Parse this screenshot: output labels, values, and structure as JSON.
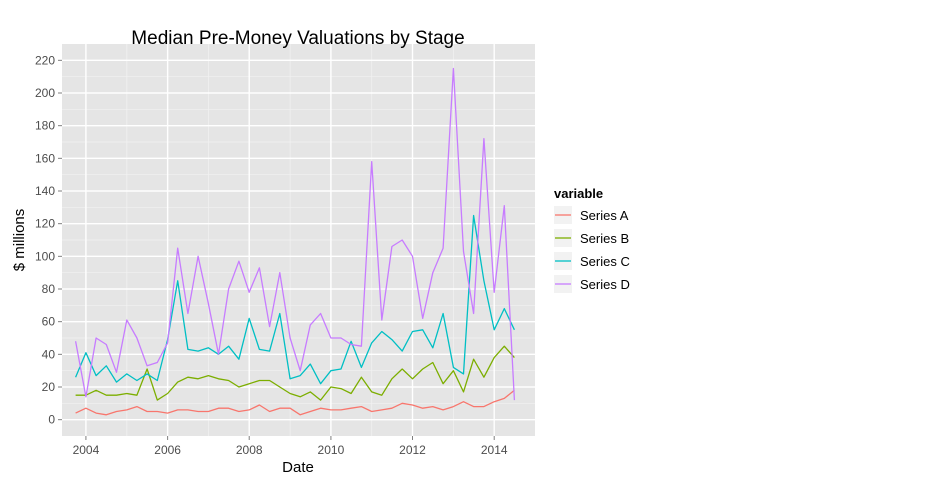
{
  "chart_data": {
    "type": "line",
    "title": "Median Pre-Money Valuations by Stage",
    "xlabel": "Date",
    "ylabel": "$ millions",
    "x_axis_type": "date",
    "xlim": [
      "2003-06-01",
      "2015-01-01"
    ],
    "ylim": [
      -10,
      230
    ],
    "x_ticks": [
      "2004",
      "2006",
      "2008",
      "2010",
      "2012",
      "2014"
    ],
    "y_ticks": [
      0,
      20,
      40,
      60,
      80,
      100,
      120,
      140,
      160,
      180,
      200,
      220
    ],
    "grid": true,
    "legend": {
      "title": "variable",
      "position": "right"
    },
    "x": [
      "2003-10-01",
      "2004-01-01",
      "2004-04-01",
      "2004-07-01",
      "2004-10-01",
      "2005-01-01",
      "2005-04-01",
      "2005-07-01",
      "2005-10-01",
      "2006-01-01",
      "2006-04-01",
      "2006-07-01",
      "2006-10-01",
      "2007-01-01",
      "2007-04-01",
      "2007-07-01",
      "2007-10-01",
      "2008-01-01",
      "2008-04-01",
      "2008-07-01",
      "2008-10-01",
      "2009-01-01",
      "2009-04-01",
      "2009-07-01",
      "2009-10-01",
      "2010-01-01",
      "2010-04-01",
      "2010-07-01",
      "2010-10-01",
      "2011-01-01",
      "2011-04-01",
      "2011-07-01",
      "2011-10-01",
      "2012-01-01",
      "2012-04-01",
      "2012-07-01",
      "2012-10-01",
      "2013-01-01",
      "2013-04-01",
      "2013-07-01",
      "2013-10-01",
      "2014-01-01",
      "2014-04-01",
      "2014-07-01"
    ],
    "series": [
      {
        "name": "Series A",
        "color": "#F8766D",
        "values": [
          4,
          7,
          4,
          3,
          5,
          6,
          8,
          5,
          5,
          4,
          6,
          6,
          5,
          5,
          7,
          7,
          5,
          6,
          9,
          5,
          7,
          7,
          3,
          5,
          7,
          6,
          6,
          7,
          8,
          5,
          6,
          7,
          10,
          9,
          7,
          8,
          6,
          8,
          11,
          8,
          8,
          11,
          13,
          18
        ]
      },
      {
        "name": "Series B",
        "color": "#7CAE00",
        "values": [
          15,
          15,
          18,
          15,
          15,
          16,
          15,
          31,
          12,
          16,
          23,
          26,
          25,
          27,
          25,
          24,
          20,
          22,
          24,
          24,
          20,
          16,
          14,
          17,
          12,
          20,
          19,
          16,
          26,
          17,
          15,
          25,
          31,
          25,
          31,
          35,
          22,
          30,
          17,
          37,
          26,
          38,
          45,
          38
        ]
      },
      {
        "name": "Series C",
        "color": "#00BFC4",
        "values": [
          26,
          41,
          27,
          33,
          23,
          28,
          24,
          28,
          24,
          49,
          85,
          43,
          42,
          44,
          40,
          45,
          37,
          62,
          43,
          42,
          65,
          25,
          27,
          34,
          22,
          30,
          31,
          48,
          32,
          47,
          54,
          49,
          42,
          54,
          55,
          44,
          65,
          32,
          28,
          125,
          85,
          55,
          68,
          55
        ]
      },
      {
        "name": "Series D",
        "color": "#C77CFF",
        "values": [
          48,
          14,
          50,
          46,
          29,
          61,
          50,
          33,
          35,
          47,
          105,
          65,
          100,
          71,
          40,
          80,
          97,
          78,
          93,
          57,
          90,
          50,
          30,
          58,
          65,
          50,
          50,
          46,
          45,
          158,
          61,
          106,
          110,
          100,
          62,
          90,
          105,
          215,
          103,
          65,
          172,
          78,
          131,
          12
        ]
      }
    ]
  }
}
